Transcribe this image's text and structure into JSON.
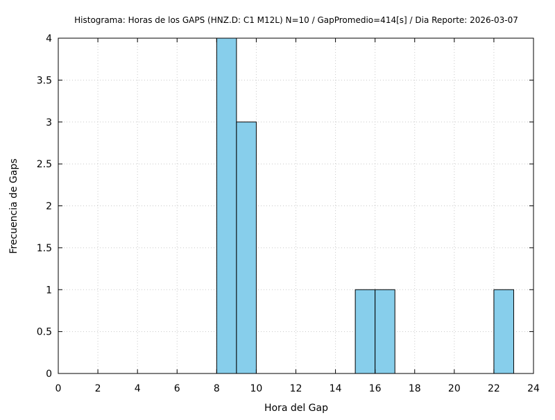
{
  "chart_data": {
    "type": "bar",
    "title": "Histograma: Horas de los GAPS (HNZ.D: C1 M12L) N=10 / GapPromedio=414[s] / Dia Reporte: 2026-03-07",
    "xlabel": "Hora del Gap",
    "ylabel": "Frecuencia de Gaps",
    "xlim": [
      0,
      24
    ],
    "ylim": [
      0,
      4
    ],
    "xticks": [
      0,
      2,
      4,
      6,
      8,
      10,
      12,
      14,
      16,
      18,
      20,
      22,
      24
    ],
    "yticks": [
      0,
      0.5,
      1,
      1.5,
      2,
      2.5,
      3,
      3.5,
      4
    ],
    "xtick_labels": [
      "0",
      "2",
      "4",
      "6",
      "8",
      "10",
      "12",
      "14",
      "16",
      "18",
      "20",
      "22",
      "24"
    ],
    "ytick_labels": [
      "0",
      "0.5",
      "1",
      "1.5",
      "2",
      "2.5",
      "3",
      "3.5",
      "4"
    ],
    "grid": true,
    "bar_color": "#87CEEB",
    "bins": [
      {
        "start": 8,
        "end": 9,
        "value": 4
      },
      {
        "start": 9,
        "end": 10,
        "value": 3
      },
      {
        "start": 15,
        "end": 16,
        "value": 1
      },
      {
        "start": 16,
        "end": 17,
        "value": 1
      },
      {
        "start": 22,
        "end": 23,
        "value": 1
      }
    ]
  }
}
